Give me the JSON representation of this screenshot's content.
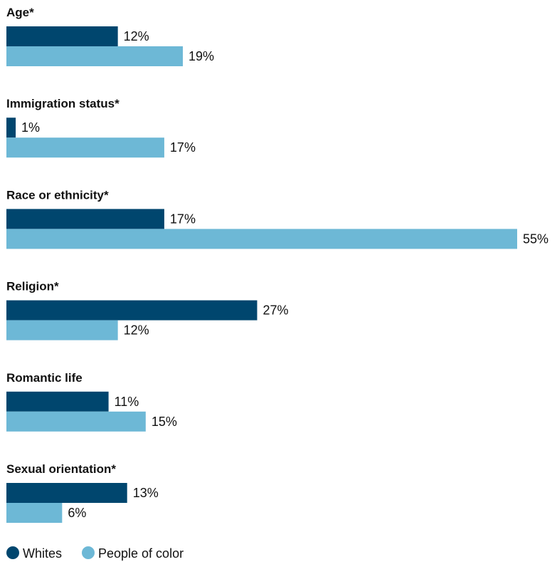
{
  "chart_data": {
    "type": "bar",
    "orientation": "horizontal",
    "categories": [
      "Age*",
      "Immigration status*",
      "Race or ethnicity*",
      "Religion*",
      "Romantic life",
      "Sexual orientation*"
    ],
    "series": [
      {
        "name": "Whites",
        "values": [
          12,
          1,
          17,
          27,
          11,
          13
        ],
        "labels": [
          "12%",
          "1%",
          "17%",
          "27%",
          "11%",
          "13%"
        ],
        "color": "#00466e"
      },
      {
        "name": "People of color",
        "values": [
          19,
          17,
          55,
          12,
          15,
          6
        ],
        "labels": [
          "19%",
          "17%",
          "55%",
          "12%",
          "15%",
          "6%"
        ],
        "color": "#6db8d6"
      }
    ],
    "xlim": [
      0,
      55
    ],
    "grid": false,
    "legend_position": "bottom-left"
  }
}
